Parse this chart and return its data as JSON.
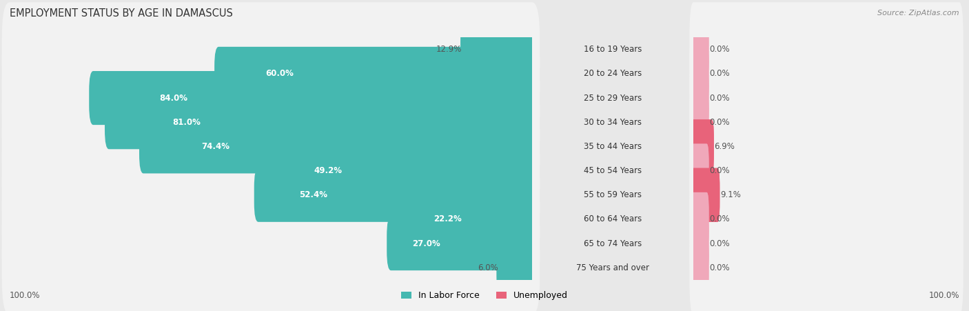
{
  "title": "EMPLOYMENT STATUS BY AGE IN DAMASCUS",
  "source": "Source: ZipAtlas.com",
  "categories": [
    "16 to 19 Years",
    "20 to 24 Years",
    "25 to 29 Years",
    "30 to 34 Years",
    "35 to 44 Years",
    "45 to 54 Years",
    "55 to 59 Years",
    "60 to 64 Years",
    "65 to 74 Years",
    "75 Years and over"
  ],
  "in_labor_force": [
    12.9,
    60.0,
    84.0,
    81.0,
    74.4,
    49.2,
    52.4,
    22.2,
    27.0,
    6.0
  ],
  "unemployed": [
    0.0,
    0.0,
    0.0,
    0.0,
    6.9,
    0.0,
    9.1,
    0.0,
    0.0,
    0.0
  ],
  "unemployed_placeholder": 5.0,
  "labor_color": "#45b8b0",
  "unemployed_color_full": "#e8637a",
  "unemployed_color_empty": "#f0a8ba",
  "background_color": "#e8e8e8",
  "row_color": "#f2f2f2",
  "title_fontsize": 10.5,
  "label_fontsize": 8.5,
  "legend_fontsize": 9,
  "bar_value_fontsize": 8.5,
  "x_left_label": "100.0%",
  "x_right_label": "100.0%",
  "max_labor": 100.0,
  "max_unemployed": 100.0,
  "bar_height": 0.62
}
